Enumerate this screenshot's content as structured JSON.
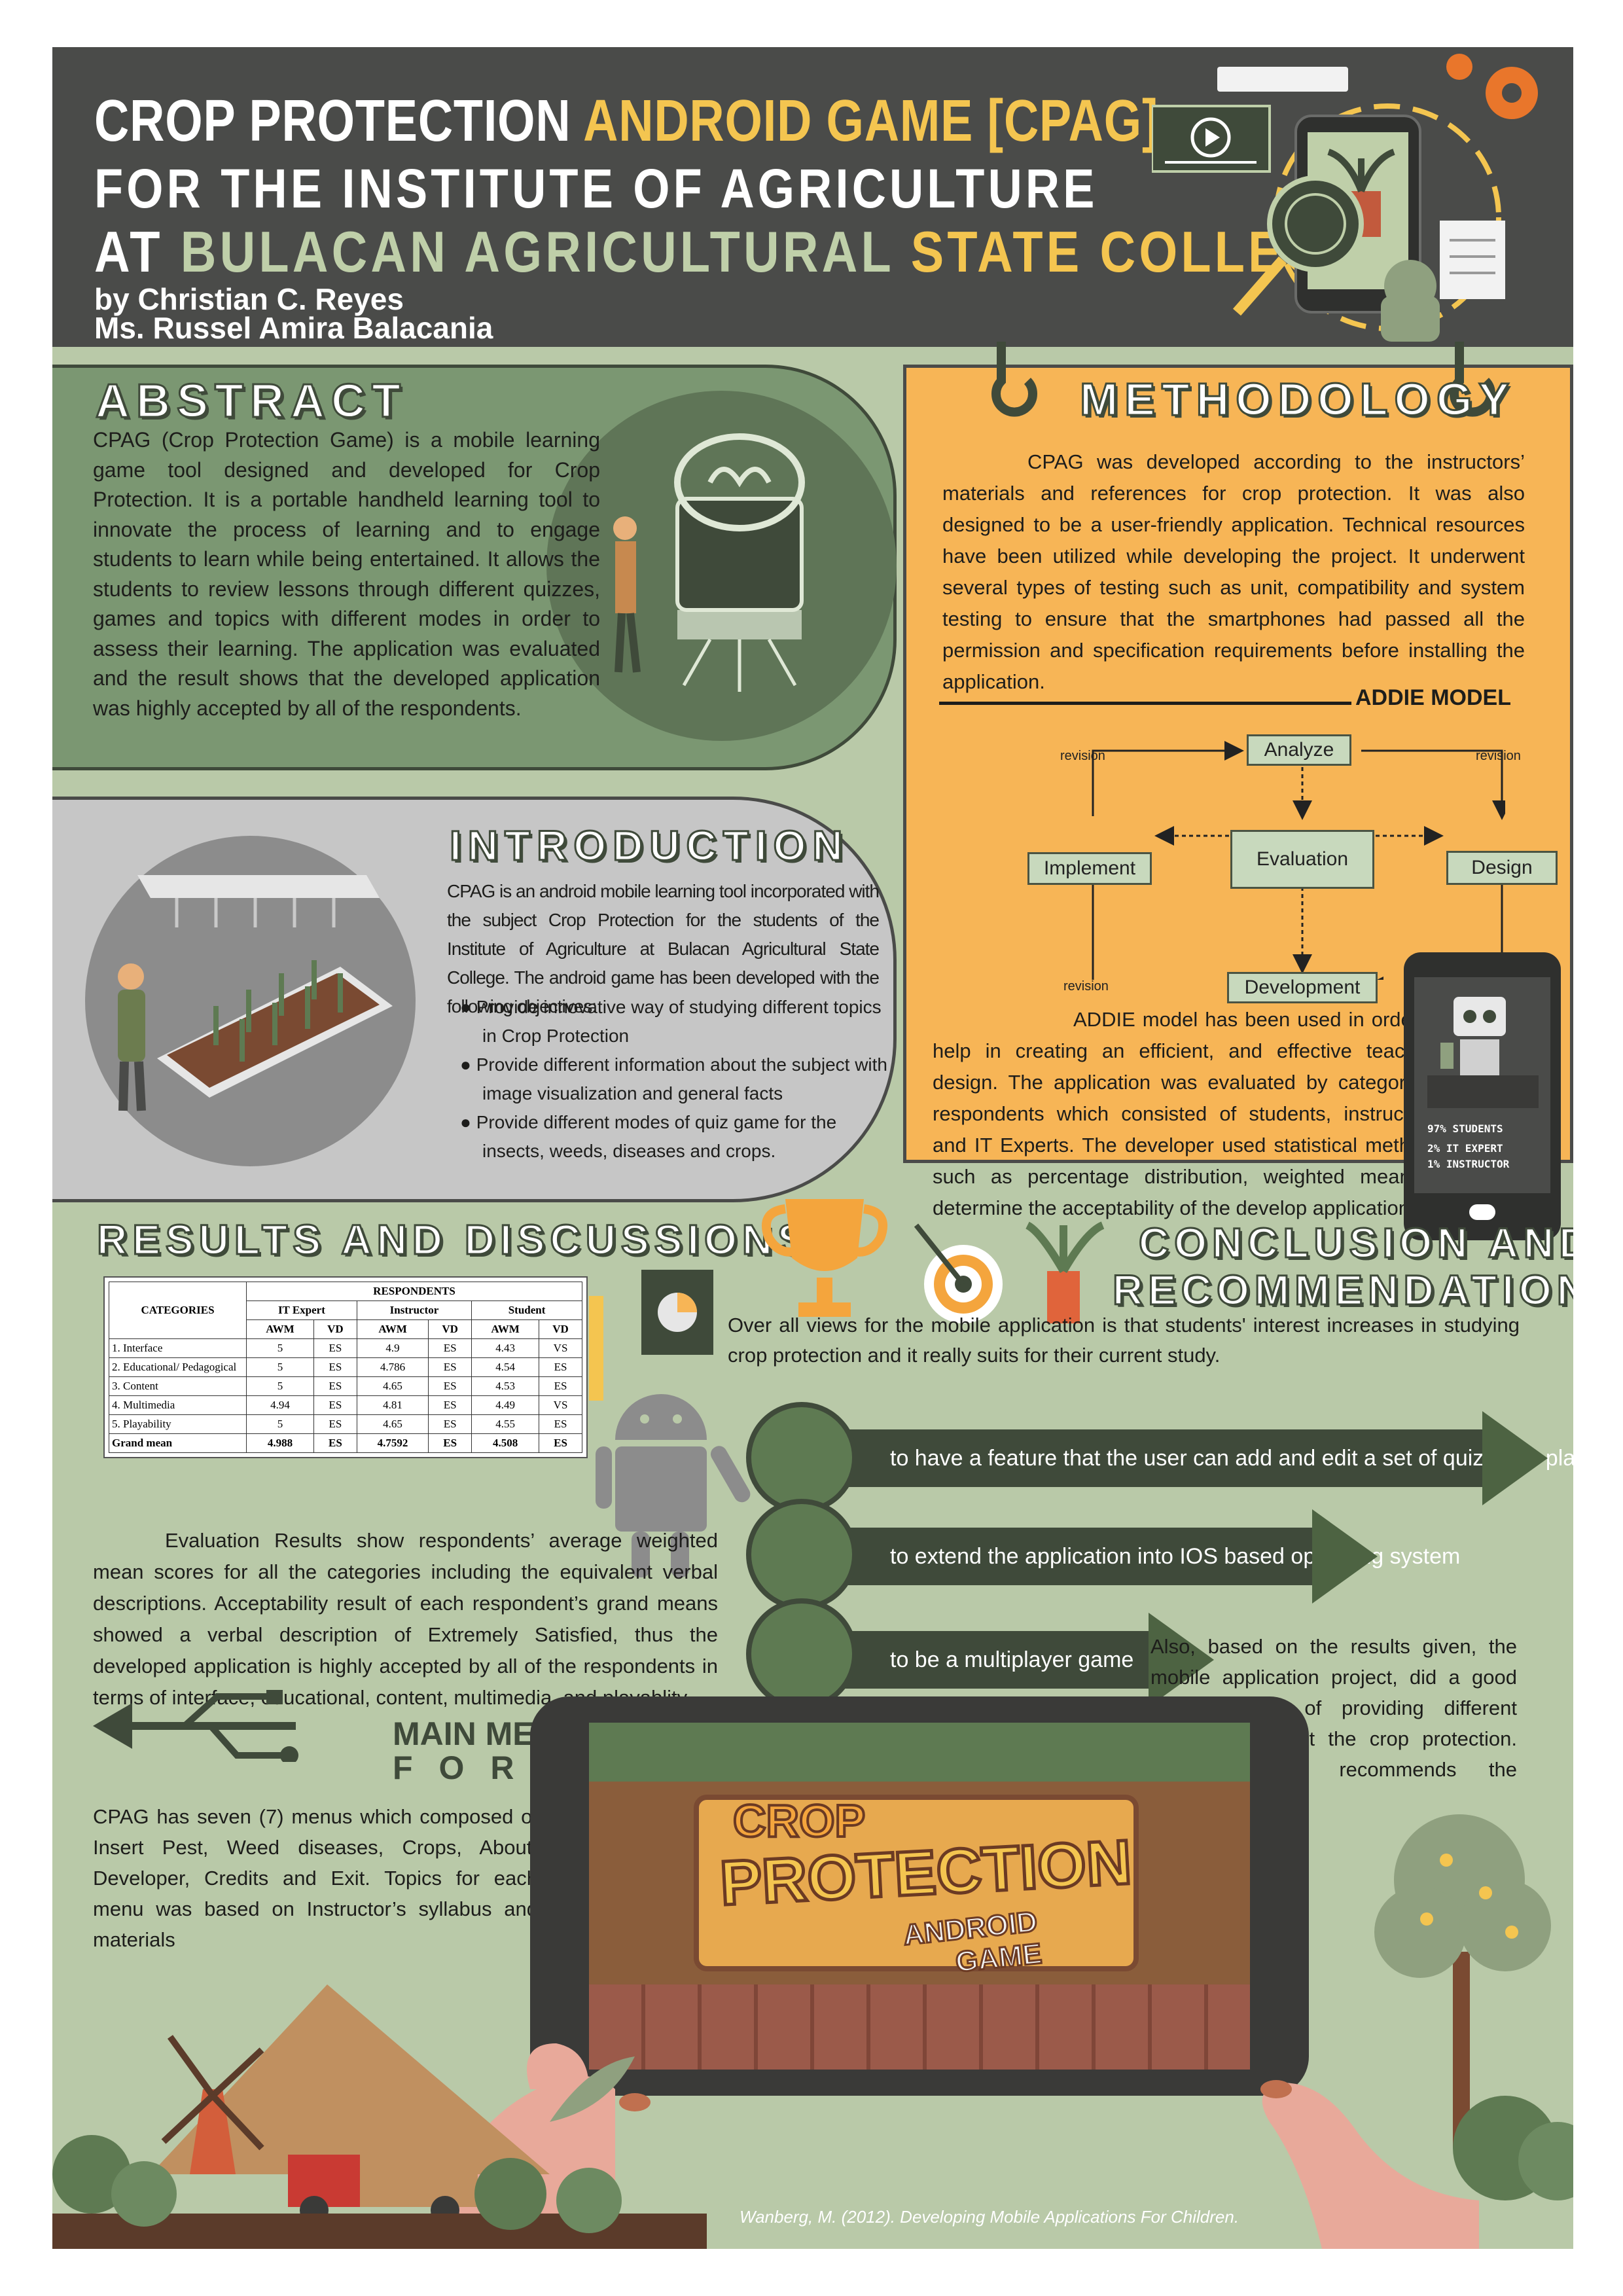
{
  "header": {
    "title_part1": "CROP PROTECTION ",
    "title_part2": "ANDROID GAME ",
    "title_part3": "[CPAG]",
    "line2": "FOR THE INSTITUTE OF AGRICULTURE",
    "line3_part1": "AT ",
    "line3_part2": "BULACAN AGRICULTURAL ",
    "line3_part3": "STATE COLLEGE",
    "author1": "by Christian C. Reyes",
    "author2": "Ms. Russel Amira Balacania"
  },
  "abstract": {
    "heading": "ABSTRACT",
    "text": "CPAG (Crop Protection Game) is a mobile learning game tool designed and developed for Crop Protection. It is a portable handheld learning tool to innovate the process of learning and to engage students to learn while being entertained. It allows the students to review lessons through different quizzes, games and topics with different modes in order to assess their learning. The application was evaluated and the result shows that the developed application was highly accepted by all of the respondents."
  },
  "methodology": {
    "heading": "METHODOLOGY",
    "text": "CPAG was developed according to the instructors’ materials and references for crop protection. It was also designed to be a user-friendly application. Technical resources have been utilized while developing the project. It underwent several types of testing such as unit, compatibility and system testing to ensure that the smartphones had passed all the permission and specification requirements before installing the application.",
    "addie_label": "ADDIE MODEL",
    "diagram": {
      "analyze": "Analyze",
      "design": "Design",
      "development": "Development",
      "implement": "Implement",
      "evaluation": "Evaluation",
      "revision": "revision"
    },
    "text2": "ADDIE model has been used in order to help in creating an efficient, and effective teaching design. The application was evaluated by categorized respondents which consisted of students, instructors, and IT Experts. The developer used statistical methods such as percentage distribution, weighted mean to determine the acceptability of the develop application.",
    "phone_line1": "97% STUDENTS",
    "phone_line2": "2% IT EXPERT",
    "phone_line3": "1% INSTRUCTOR"
  },
  "introduction": {
    "heading": "INTRODUCTION",
    "text": "CPAG is an android mobile learning tool incorporated with the subject Crop Protection for the students of the Institute of Agriculture at Bulacan Agricultural State College. The android game has been developed with the following objectives:",
    "bullets": [
      "Provide innovative way of studying different topics in Crop Protection",
      "Provide different information about the subject with image visualization and general facts",
      "Provide different modes of quiz game for the insects, weeds, diseases and crops."
    ]
  },
  "results": {
    "heading": "RESULTS AND DISCUSSIONS",
    "table": {
      "categories_label": "CATEGORIES",
      "respondents_label": "RESPONDENTS",
      "groups": [
        "IT Expert",
        "Instructor",
        "Student"
      ],
      "subheads": [
        "AWM",
        "VD",
        "AWM",
        "VD",
        "AWM",
        "VD"
      ],
      "rows": [
        [
          "1. Interface",
          "5",
          "ES",
          "4.9",
          "ES",
          "4.43",
          "VS"
        ],
        [
          "2. Educational/ Pedagogical",
          "5",
          "ES",
          "4.786",
          "ES",
          "4.54",
          "ES"
        ],
        [
          "3. Content",
          "5",
          "ES",
          "4.65",
          "ES",
          "4.53",
          "ES"
        ],
        [
          "4. Multimedia",
          "4.94",
          "ES",
          "4.81",
          "ES",
          "4.49",
          "VS"
        ],
        [
          "5. Playability",
          "5",
          "ES",
          "4.65",
          "ES",
          "4.55",
          "ES"
        ],
        [
          "Grand mean",
          "4.988",
          "ES",
          "4.7592",
          "ES",
          "4.508",
          "ES"
        ]
      ]
    },
    "text": "Evaluation Results show respondents’ average weighted mean scores for all the categories including the equivalent verbal descriptions. Acceptability result of each respondent’s grand means showed a verbal description of Extremely Satisfied, thus the developed application is highly accepted by all of the respondents in terms of interface, educational, content, multimedia, and playablity."
  },
  "main_menu": {
    "heading1": "MAIN MENU",
    "heading2": "FORM",
    "text": "CPAG has seven (7) menus which composed of Insert Pest, Weed diseases, Crops, About, Developer, Credits and Exit. Topics for each menu was based on Instructor’s syllabus and materials"
  },
  "conclusion": {
    "heading1": "CONCLUSION AND",
    "heading2": "RECOMMENDATION",
    "text": "Over all views for the mobile application is that students' interest increases in studying crop protection and it really suits for their current study.",
    "recommendations": [
      "to have a feature that the user can add and edit a set of quiz to be played",
      "to extend the application into IOS based operating system",
      "to be a multiplayer game"
    ],
    "text2": "Also, based on the results given, the mobile application project, did a good job in terms of providing different information about the crop protection. The developer recommends the application."
  },
  "game_logo": {
    "line1": "CROP",
    "line2": "PROTECTION",
    "line3": "ANDROID",
    "line4": "GAME"
  },
  "reference": "Wanberg, M. (2012). Developing Mobile Applications For Children.",
  "colors": {
    "background": "#b9c9a8",
    "header": "#4a4b49",
    "accent_yellow": "#f4c550",
    "methodology_panel": "#f7b556",
    "dark_green": "#3f4a3a"
  }
}
